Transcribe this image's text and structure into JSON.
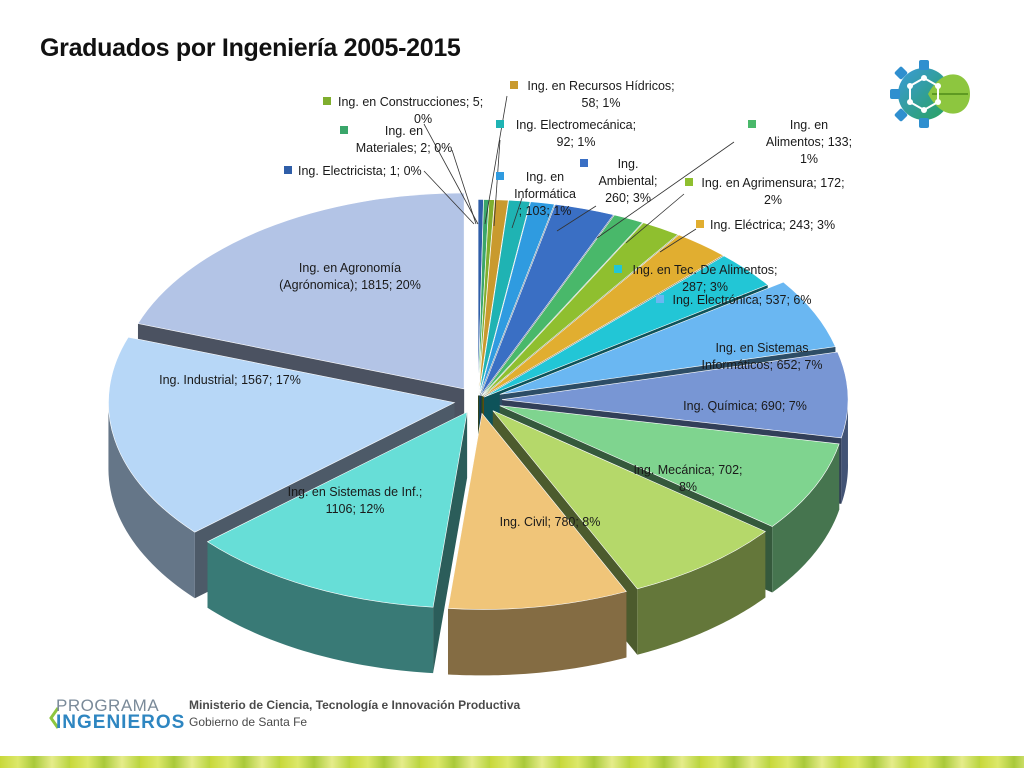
{
  "page": {
    "title": "Graduados por Ingeniería 2005-2015"
  },
  "footer": {
    "program_line1": "PROGRAMA",
    "program_line2": "INGENIEROS",
    "ministry": "Ministerio de Ciencia, Tecnología e Innovación Productiva",
    "government": "Gobierno de Santa Fe"
  },
  "chart_data": {
    "type": "pie",
    "title": "Graduados por Ingeniería 2005-2015",
    "three_d": true,
    "exploded": true,
    "slices": [
      {
        "name": "Ing. Electricista",
        "value": 1,
        "percent": "0%",
        "color": "#2f5ea8",
        "label": "Ing. Electricista; 1; 0%"
      },
      {
        "name": "Ing. en Materiales",
        "value": 2,
        "percent": "0%",
        "color": "#3aa66a",
        "label": "Ing. en Materiales; 2; 0%"
      },
      {
        "name": "Ing. en Construcciones",
        "value": 5,
        "percent": "0%",
        "color": "#7fae2e",
        "label": "Ing. en Construcciones; 5; 0%"
      },
      {
        "name": "Ing. en Recursos Hídricos",
        "value": 58,
        "percent": "1%",
        "color": "#c99a2e",
        "label": "Ing. en Recursos Hídricos; 58; 1%"
      },
      {
        "name": "Ing. Electromecánica",
        "value": 92,
        "percent": "1%",
        "color": "#1fb3b3",
        "label": "Ing. Electromecánica; 92; 1%"
      },
      {
        "name": "Ing. en Informática",
        "value": 103,
        "percent": "1%",
        "color": "#2f9be0",
        "label": "Ing. en Informática; 103; 1%"
      },
      {
        "name": "Ing. Ambiental",
        "value": 260,
        "percent": "3%",
        "color": "#3a6fc4",
        "label": "Ing. Ambiental; 260; 3%"
      },
      {
        "name": "Ing. en Alimentos",
        "value": 133,
        "percent": "1%",
        "color": "#49b86a",
        "label": "Ing. en Alimentos; 133; 1%"
      },
      {
        "name": "Ing. en Agrimensura",
        "value": 172,
        "percent": "2%",
        "color": "#8fbf2f",
        "label": "Ing. en Agrimensura; 172; 2%"
      },
      {
        "name": "Ing. Eléctrica",
        "value": 243,
        "percent": "3%",
        "color": "#e1ae30",
        "label": "Ing. Eléctrica; 243; 3%"
      },
      {
        "name": "Ing. en Tec. De Alimentos",
        "value": 287,
        "percent": "3%",
        "color": "#22c6d6",
        "label": "Ing. en Tec. De Alimentos; 287; 3%"
      },
      {
        "name": "Ing. Electrónica",
        "value": 537,
        "percent": "6%",
        "color": "#6ab7f2",
        "label": "Ing. Electrónica; 537; 6%"
      },
      {
        "name": "Ing. en Sistemas Informáticos",
        "value": 652,
        "percent": "7%",
        "color": "#7896d4",
        "label": "Ing. en Sistemas Informáticos; 652; 7%"
      },
      {
        "name": "Ing. Química",
        "value": 690,
        "percent": "7%",
        "color": "#7fd48f",
        "label": "Ing. Química; 690; 7%"
      },
      {
        "name": "Ing. Mecánica",
        "value": 702,
        "percent": "8%",
        "color": "#b5d86a",
        "label": "Ing. Mecánica; 702; 8%"
      },
      {
        "name": "Ing. Civil",
        "value": 780,
        "percent": "8%",
        "color": "#f0c579",
        "label": "Ing. Civil; 780; 8%"
      },
      {
        "name": "Ing. en Sistemas de Inf.",
        "value": 1106,
        "percent": "12%",
        "color": "#67ded7",
        "label": "Ing. en Sistemas de Inf.; 1106; 12%"
      },
      {
        "name": "Ing. Industrial",
        "value": 1567,
        "percent": "17%",
        "color": "#b7d7f7",
        "label": "Ing. Industrial; 1567; 17%"
      },
      {
        "name": "Ing. en Agronomía (Agrónomica)",
        "value": 1815,
        "percent": "20%",
        "color": "#b3c4e6",
        "label": "Ing. en Agronomía (Agrónomica); 1815; 20%"
      }
    ]
  }
}
